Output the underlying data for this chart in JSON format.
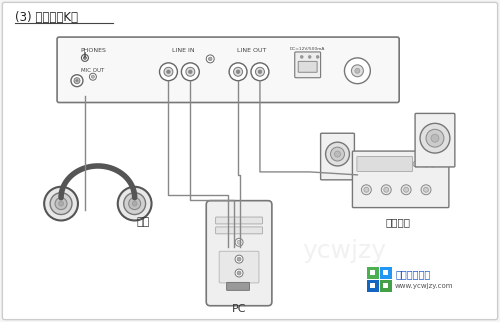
{
  "title": "(3) 电脑本地K歌",
  "bg_color": "#f5f5f5",
  "border_color": "#888888",
  "line_color": "#555555",
  "text_color": "#333333",
  "watermark_green": "#4caf50",
  "watermark_blue": "#2196f3",
  "watermark_text": "纯净系统之家",
  "watermark_url": "www.ycwjzy.com",
  "label_earphone": "耳机",
  "label_speaker": "功放音筱",
  "label_pc": "PC",
  "label_phones": "PHONES",
  "label_mic_out": "MIC OUT",
  "label_line_in": "LINE IN",
  "label_line_out": "LINE OUT",
  "label_dc": "DC=12V/500mA"
}
